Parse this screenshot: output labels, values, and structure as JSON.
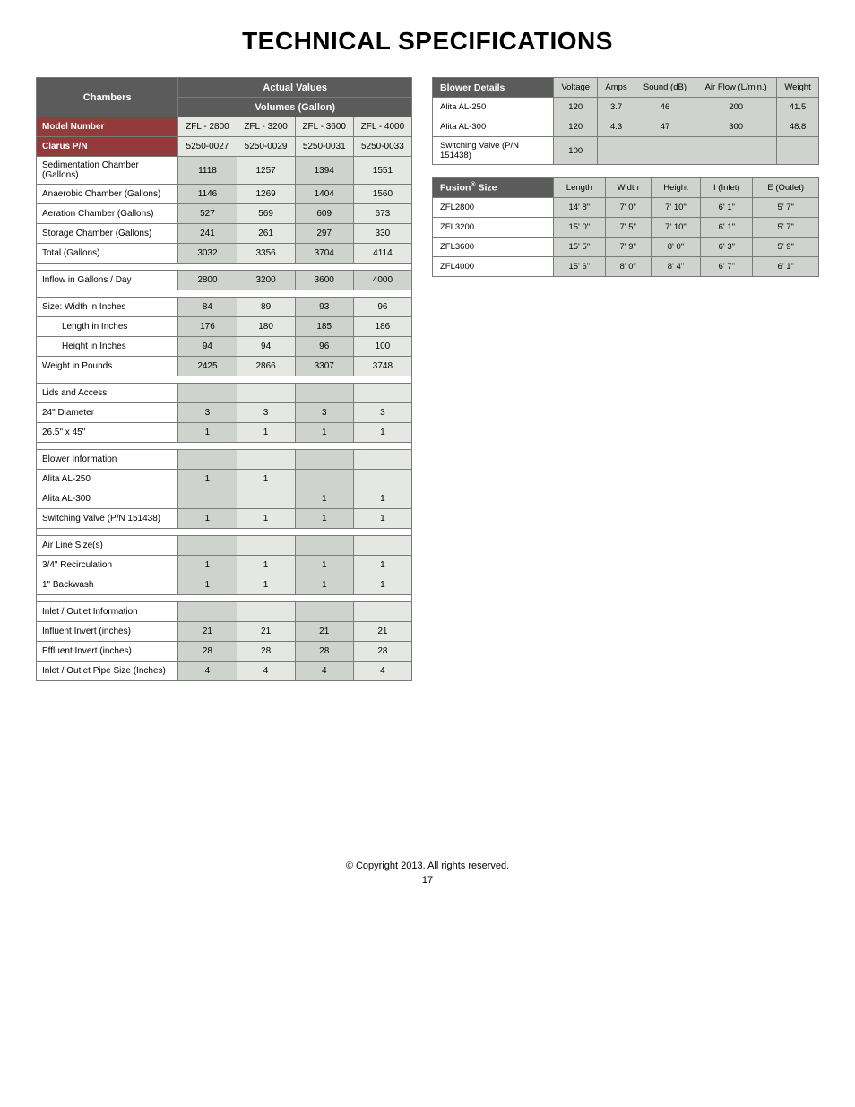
{
  "page": {
    "title": "TECHNICAL SPECIFICATIONS",
    "copyright": "© Copyright 2013. All rights reserved.",
    "page_number": "17"
  },
  "colors": {
    "header_dark": "#5b5b5b",
    "header_maroon": "#933a3a",
    "cell_grey": "#cfd3cd",
    "cell_lightgrey": "#e4e7e2",
    "border": "#7a7a7a"
  },
  "chambers": {
    "corner": "Chambers",
    "top1": "Actual Values",
    "top2": "Volumes (Gallon)",
    "model_row_label": "Model Number",
    "clarus_row_label": "Clarus P/N",
    "models": [
      "ZFL - 2800",
      "ZFL - 3200",
      "ZFL - 3600",
      "ZFL - 4000"
    ],
    "clarus": [
      "5250-0027",
      "5250-0029",
      "5250-0031",
      "5250-0033"
    ],
    "vol_rows": [
      {
        "label": "Sedimentation Chamber (Gallons)",
        "v": [
          "1118",
          "1257",
          "1394",
          "1551"
        ]
      },
      {
        "label": "Anaerobic Chamber (Gallons)",
        "v": [
          "1146",
          "1269",
          "1404",
          "1560"
        ]
      },
      {
        "label": "Aeration Chamber (Gallons)",
        "v": [
          "527",
          "569",
          "609",
          "673"
        ]
      },
      {
        "label": "Storage Chamber (Gallons)",
        "v": [
          "241",
          "261",
          "297",
          "330"
        ]
      },
      {
        "label": "Total (Gallons)",
        "v": [
          "3032",
          "3356",
          "3704",
          "4114"
        ]
      }
    ],
    "inflow": {
      "label": "Inflow in Gallons / Day",
      "v": [
        "2800",
        "3200",
        "3600",
        "4000"
      ]
    },
    "size_rows": [
      {
        "label": "Size:   Width in Inches",
        "indent": false,
        "v": [
          "84",
          "89",
          "93",
          "96"
        ]
      },
      {
        "label": "Length in Inches",
        "indent": true,
        "v": [
          "176",
          "180",
          "185",
          "186"
        ]
      },
      {
        "label": "Height in Inches",
        "indent": true,
        "v": [
          "94",
          "94",
          "96",
          "100"
        ]
      },
      {
        "label": "Weight in Pounds",
        "indent": false,
        "v": [
          "2425",
          "2866",
          "3307",
          "3748"
        ]
      }
    ],
    "lids": {
      "header": "Lids and Access",
      "rows": [
        {
          "label": "24\" Diameter",
          "v": [
            "3",
            "3",
            "3",
            "3"
          ]
        },
        {
          "label": "26.5\" x 45\"",
          "v": [
            "1",
            "1",
            "1",
            "1"
          ]
        }
      ]
    },
    "blower_info": {
      "header": "Blower Information",
      "rows": [
        {
          "label": "Alita AL-250",
          "v": [
            "1",
            "1",
            "",
            ""
          ]
        },
        {
          "label": "Alita AL-300",
          "v": [
            "",
            "",
            "1",
            "1"
          ]
        },
        {
          "label": "Switching Valve (P/N 151438)",
          "v": [
            "1",
            "1",
            "1",
            "1"
          ]
        }
      ]
    },
    "airline": {
      "header": "Air Line Size(s)",
      "rows": [
        {
          "label": "3/4\" Recirculation",
          "v": [
            "1",
            "1",
            "1",
            "1"
          ]
        },
        {
          "label": "1\" Backwash",
          "v": [
            "1",
            "1",
            "1",
            "1"
          ]
        }
      ]
    },
    "inout": {
      "header": "Inlet / Outlet Information",
      "rows": [
        {
          "label": "Influent Invert (inches)",
          "v": [
            "21",
            "21",
            "21",
            "21"
          ]
        },
        {
          "label": "Effluent Invert (inches)",
          "v": [
            "28",
            "28",
            "28",
            "28"
          ]
        },
        {
          "label": "Inlet / Outlet Pipe Size (Inches)",
          "v": [
            "4",
            "4",
            "4",
            "4"
          ]
        }
      ]
    }
  },
  "blower_details": {
    "title": "Blower Details",
    "cols": [
      "Voltage",
      "Amps",
      "Sound (dB)",
      "Air Flow (L/min.)",
      "Weight"
    ],
    "rows": [
      {
        "label": "Alita AL-250",
        "v": [
          "120",
          "3.7",
          "46",
          "200",
          "41.5"
        ]
      },
      {
        "label": "Alita AL-300",
        "v": [
          "120",
          "4.3",
          "47",
          "300",
          "48.8"
        ]
      },
      {
        "label": "Switching Valve (P/N 151438)",
        "v": [
          "100",
          "",
          "",
          "",
          ""
        ]
      }
    ]
  },
  "fusion_size": {
    "title_pre": "Fusion",
    "title_sup": "®",
    "title_post": " Size",
    "cols": [
      "Length",
      "Width",
      "Height",
      "I (Inlet)",
      "E (Outlet)"
    ],
    "rows": [
      {
        "label": "ZFL2800",
        "v": [
          "14' 8\"",
          "7' 0\"",
          "7' 10\"",
          "6' 1\"",
          "5' 7\""
        ]
      },
      {
        "label": "ZFL3200",
        "v": [
          "15' 0\"",
          "7' 5\"",
          "7' 10\"",
          "6' 1\"",
          "5' 7\""
        ]
      },
      {
        "label": "ZFL3600",
        "v": [
          "15' 5\"",
          "7' 9\"",
          "8' 0\"",
          "6' 3\"",
          "5' 9\""
        ]
      },
      {
        "label": "ZFL4000",
        "v": [
          "15' 6\"",
          "8' 0\"",
          "8' 4\"",
          "6' 7\"",
          "6' 1\""
        ]
      }
    ]
  }
}
